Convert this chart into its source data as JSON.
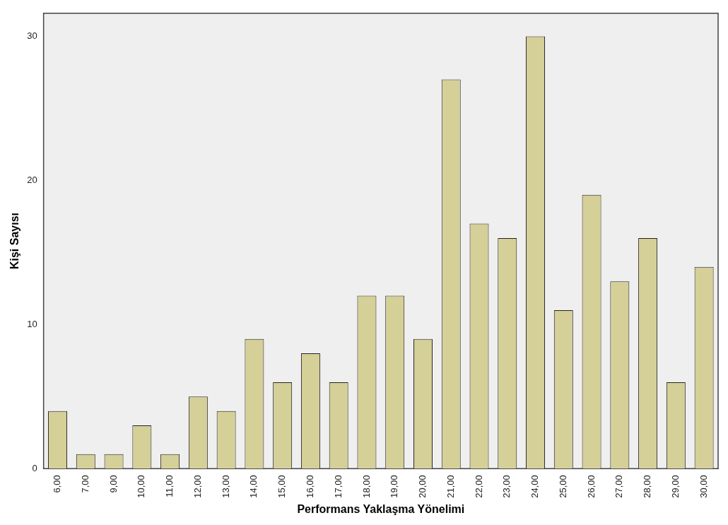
{
  "chart_data": {
    "type": "bar",
    "xlabel": "Performans Yaklaşma Yönelimi",
    "ylabel": "Kişi Sayısı",
    "categories": [
      "6,00",
      "7,00",
      "9,00",
      "10,00",
      "11,00",
      "12,00",
      "13,00",
      "14,00",
      "15,00",
      "16,00",
      "17,00",
      "18,00",
      "19,00",
      "20,00",
      "21,00",
      "22,00",
      "23,00",
      "24,00",
      "25,00",
      "26,00",
      "27,00",
      "28,00",
      "29,00",
      "30,00"
    ],
    "values": [
      4,
      1,
      1,
      3,
      1,
      5,
      4,
      9,
      6,
      8,
      6,
      12,
      12,
      9,
      27,
      17,
      16,
      30,
      11,
      19,
      13,
      16,
      6,
      14
    ],
    "color": "#d5cf98",
    "ylim": [
      0,
      31.6
    ],
    "yticks": [
      0,
      10,
      20,
      30
    ],
    "grid": false,
    "legend": false
  }
}
